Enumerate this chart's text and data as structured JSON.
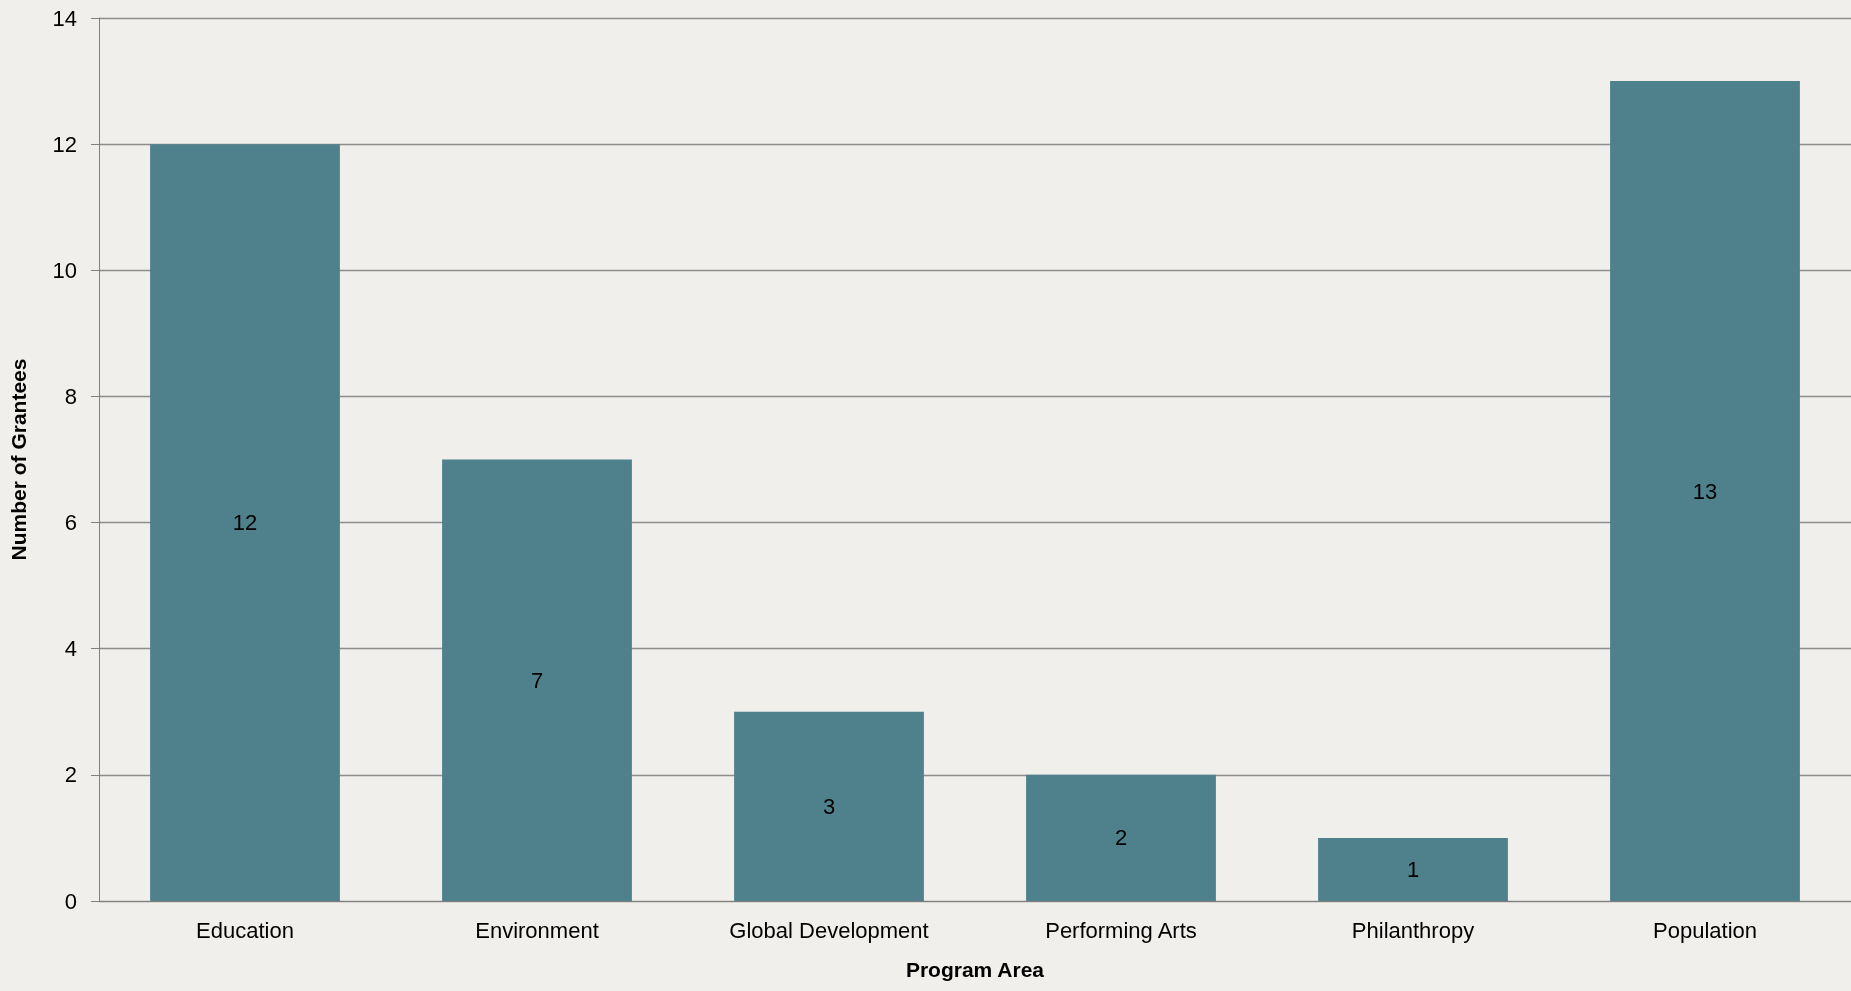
{
  "chart_data": {
    "type": "bar",
    "xlabel": "Program Area",
    "ylabel": "Number of Grantees",
    "categories": [
      "Education",
      "Environment",
      "Global Development",
      "Performing Arts",
      "Philanthropy",
      "Population"
    ],
    "values": [
      12,
      7,
      3,
      2,
      1,
      13
    ],
    "color": "#4e818c",
    "ylim": [
      0,
      14
    ],
    "yticks": [
      0,
      2,
      4,
      6,
      8,
      10,
      12,
      14
    ],
    "grid": "y",
    "data_labels": true
  }
}
